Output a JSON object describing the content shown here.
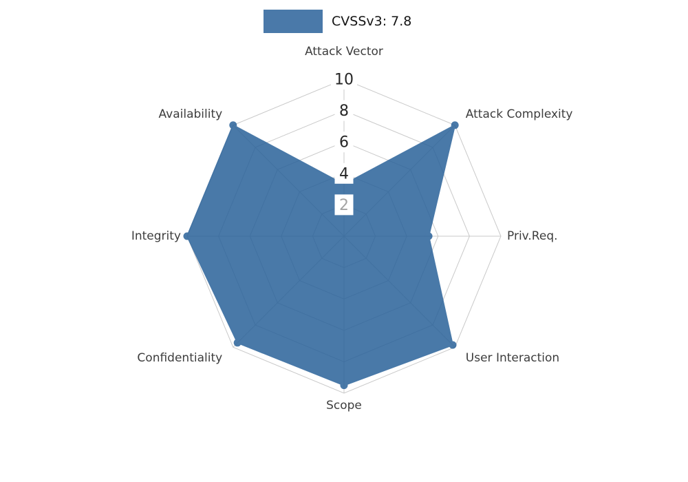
{
  "chart_data": {
    "type": "radar",
    "title": "CVSSv3: 7.8",
    "legend_position": "top-center",
    "categories": [
      "Attack Vector",
      "Attack Complexity",
      "Priv.Req.",
      "User Interaction",
      "Scope",
      "Confidentiality",
      "Integrity",
      "Availability"
    ],
    "series": [
      {
        "name": "CVSSv3: 7.8",
        "values": [
          3.3,
          10,
          5.4,
          9.8,
          9.5,
          9.6,
          10,
          10
        ]
      }
    ],
    "scale": {
      "min": 0,
      "max": 10,
      "ticks": [
        2,
        4,
        6,
        8,
        10
      ],
      "muted_ticks": [
        2
      ]
    },
    "grid": true,
    "colors": {
      "series": "#2a629a",
      "series_opacity": 0.85,
      "grid": "#c9c9c9",
      "axis_label": "#3d3d3d",
      "tick_label": "#262626",
      "tick_label_muted": "#a3a3a3",
      "tick_box": "#ffffff"
    }
  }
}
